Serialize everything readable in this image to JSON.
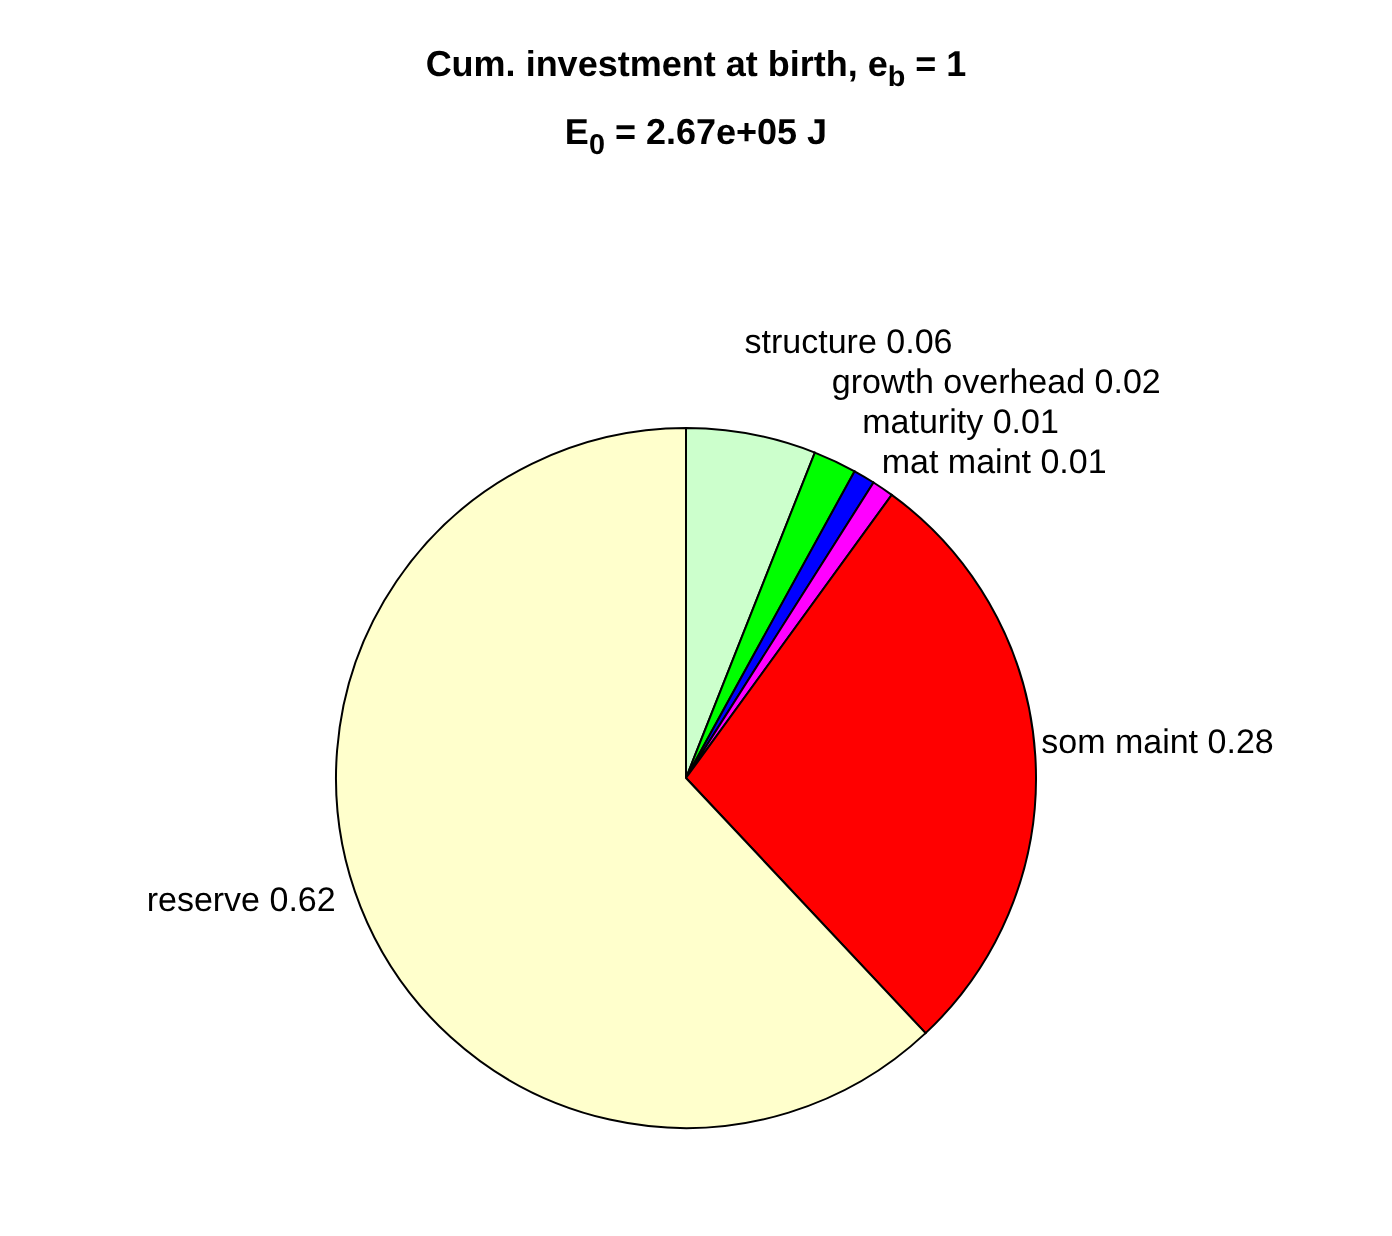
{
  "chart_data": {
    "type": "pie",
    "title": "Cum. investment at birth, e$_{b}$ = 1",
    "subtitle": "E$_{0}$ = 2.67e+05 J",
    "categories": [
      "structure",
      "growth overhead",
      "maturity",
      "mat maint",
      "som maint",
      "reserve"
    ],
    "values": [
      0.06,
      0.02,
      0.01,
      0.01,
      0.28,
      0.62
    ],
    "colors": [
      "#ccffcc",
      "#00ff00",
      "#0000ff",
      "#ff00ff",
      "#ff0000",
      "#ffffcc"
    ],
    "data_labels": true,
    "legend": false
  }
}
